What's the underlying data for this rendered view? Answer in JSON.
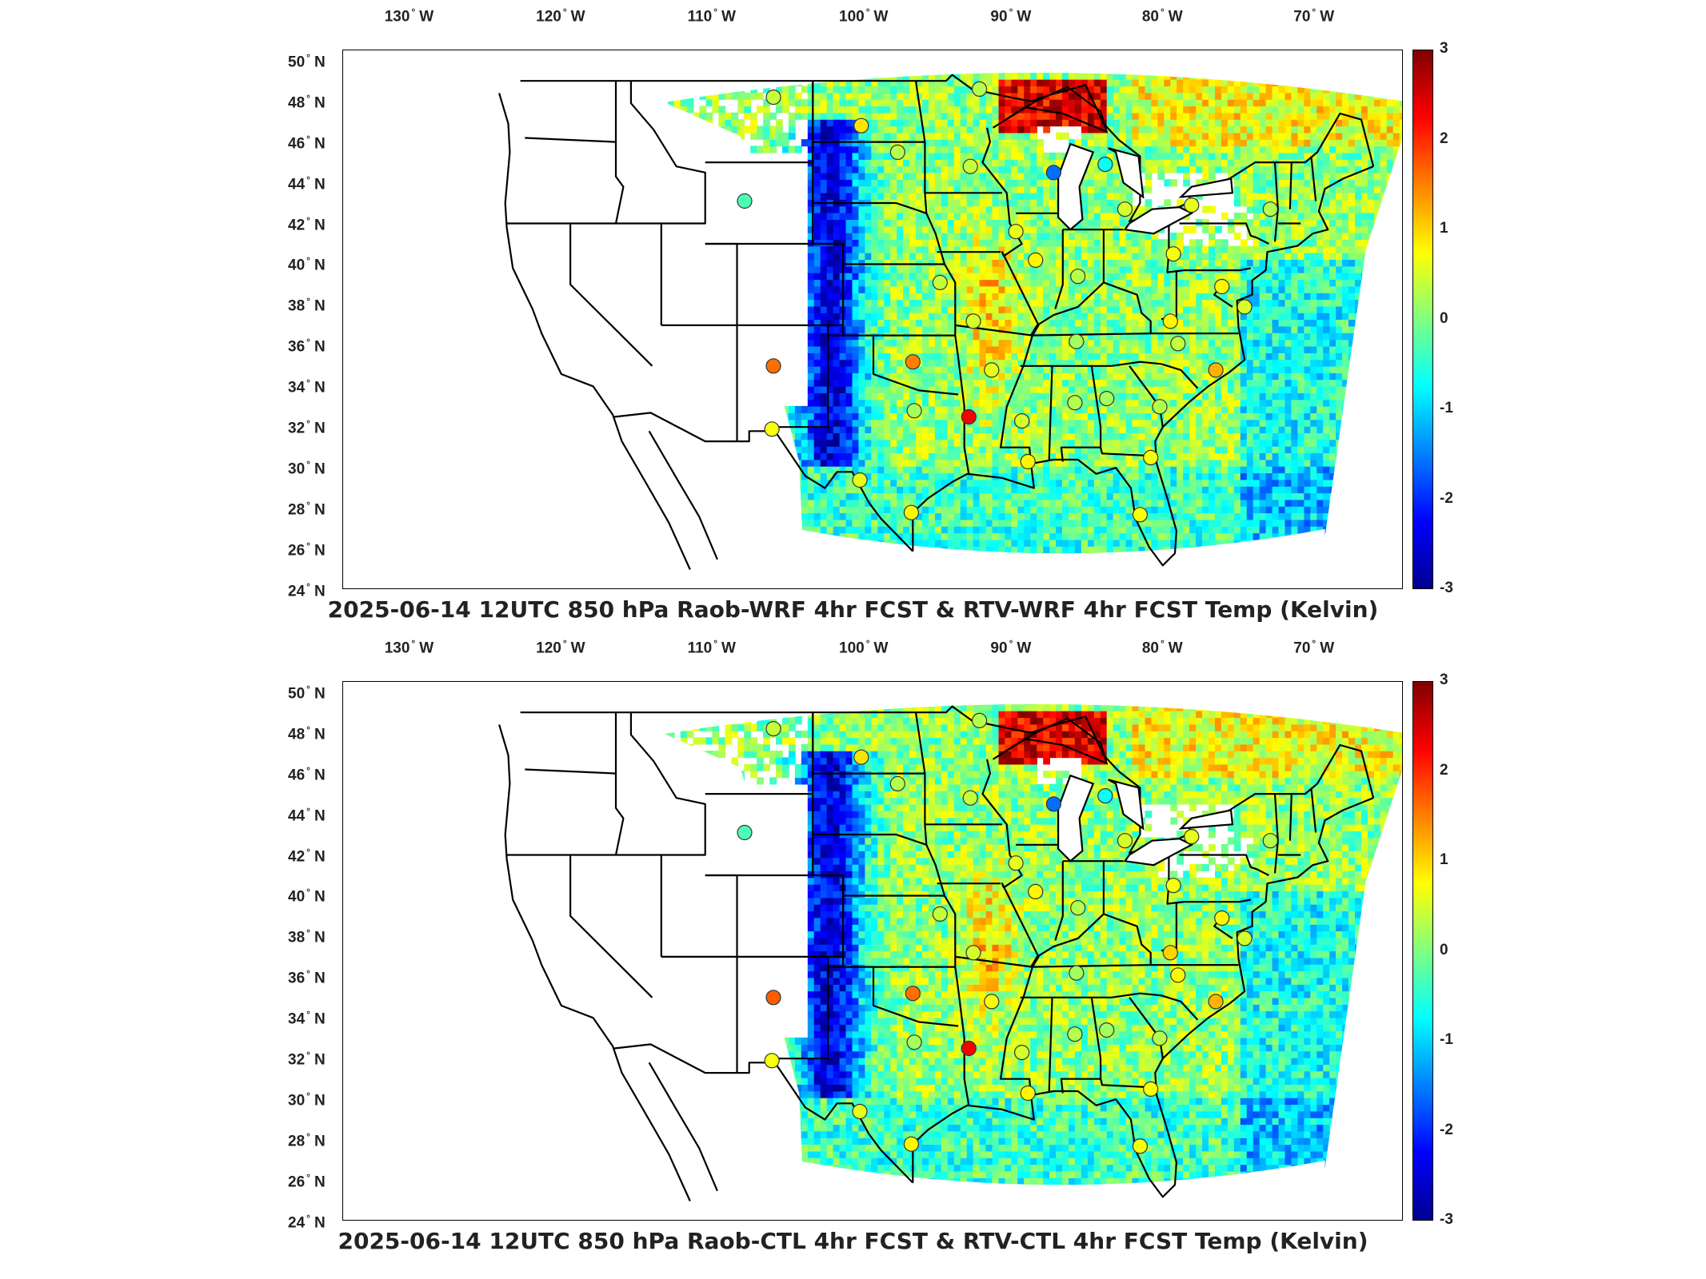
{
  "lon_ticks": [
    "130",
    "120",
    "110",
    "100",
    "90",
    "80",
    "70"
  ],
  "lon_hemisphere": "W",
  "lat_ticks": [
    "50",
    "48",
    "46",
    "44",
    "42",
    "40",
    "38",
    "36",
    "34",
    "32",
    "30",
    "28",
    "26",
    "24"
  ],
  "lat_hemisphere": "N",
  "colorbar": {
    "ticks": [
      "3",
      "2",
      "1",
      "0",
      "-1",
      "-2",
      "-3"
    ],
    "range": [
      -3,
      3
    ],
    "colormap": [
      "#00008f",
      "#0000ff",
      "#0080ff",
      "#00ffff",
      "#80ff80",
      "#ffff00",
      "#ff8000",
      "#ff0000",
      "#800000"
    ]
  },
  "panels": [
    {
      "title": "2025-06-14 12UTC 850 hPa Raob-WRF 4hr FCST & RTV-WRF 4hr FCST Temp (Kelvin)",
      "stations": [
        {
          "lon": -106.6,
          "lat": 48.2,
          "value": 0.4
        },
        {
          "lon": -100.8,
          "lat": 46.8,
          "value": 0.9
        },
        {
          "lon": -98.4,
          "lat": 45.5,
          "value": 0.3
        },
        {
          "lon": -93.6,
          "lat": 44.8,
          "value": 0.4
        },
        {
          "lon": -93.0,
          "lat": 48.6,
          "value": 0.3
        },
        {
          "lon": -88.1,
          "lat": 44.5,
          "value": -1.6
        },
        {
          "lon": -84.7,
          "lat": 44.9,
          "value": -0.7
        },
        {
          "lon": -108.5,
          "lat": 43.1,
          "value": -0.3
        },
        {
          "lon": -83.4,
          "lat": 42.7,
          "value": 0.5
        },
        {
          "lon": -79.0,
          "lat": 42.9,
          "value": 0.6
        },
        {
          "lon": -73.8,
          "lat": 42.7,
          "value": 0.3
        },
        {
          "lon": -90.6,
          "lat": 41.6,
          "value": 0.6
        },
        {
          "lon": -89.3,
          "lat": 40.2,
          "value": 0.8
        },
        {
          "lon": -80.2,
          "lat": 40.5,
          "value": 0.7
        },
        {
          "lon": -95.6,
          "lat": 39.1,
          "value": 0.4
        },
        {
          "lon": -86.5,
          "lat": 39.4,
          "value": 0.3
        },
        {
          "lon": -77.0,
          "lat": 38.9,
          "value": 0.8
        },
        {
          "lon": -75.5,
          "lat": 37.9,
          "value": 0.5
        },
        {
          "lon": -93.4,
          "lat": 37.2,
          "value": 0.5
        },
        {
          "lon": -80.4,
          "lat": 37.2,
          "value": 0.8
        },
        {
          "lon": -86.6,
          "lat": 36.2,
          "value": 0.2
        },
        {
          "lon": -79.9,
          "lat": 36.1,
          "value": 0.4
        },
        {
          "lon": -106.6,
          "lat": 35.0,
          "value": 1.6
        },
        {
          "lon": -97.4,
          "lat": 35.2,
          "value": 1.5
        },
        {
          "lon": -92.2,
          "lat": 34.8,
          "value": 0.6
        },
        {
          "lon": -77.4,
          "lat": 34.8,
          "value": 1.2
        },
        {
          "lon": -97.3,
          "lat": 32.8,
          "value": 0.2
        },
        {
          "lon": -93.7,
          "lat": 32.5,
          "value": 2.3
        },
        {
          "lon": -90.2,
          "lat": 32.3,
          "value": 0.5
        },
        {
          "lon": -86.7,
          "lat": 33.2,
          "value": 0.3
        },
        {
          "lon": -84.6,
          "lat": 33.4,
          "value": 0.2
        },
        {
          "lon": -81.1,
          "lat": 33.0,
          "value": 0.3
        },
        {
          "lon": -106.7,
          "lat": 31.9,
          "value": 0.7
        },
        {
          "lon": -89.8,
          "lat": 30.3,
          "value": 0.8
        },
        {
          "lon": -81.7,
          "lat": 30.5,
          "value": 0.7
        },
        {
          "lon": -100.9,
          "lat": 29.4,
          "value": 0.6
        },
        {
          "lon": -97.5,
          "lat": 27.8,
          "value": 0.8
        },
        {
          "lon": -82.4,
          "lat": 27.7,
          "value": 0.7
        }
      ]
    },
    {
      "title": "2025-06-14 12UTC 850 hPa Raob-CTL 4hr FCST & RTV-CTL 4hr FCST Temp (Kelvin)",
      "stations": [
        {
          "lon": -106.6,
          "lat": 48.2,
          "value": 0.4
        },
        {
          "lon": -100.8,
          "lat": 46.8,
          "value": 0.9
        },
        {
          "lon": -98.4,
          "lat": 45.5,
          "value": 0.3
        },
        {
          "lon": -93.6,
          "lat": 44.8,
          "value": 0.4
        },
        {
          "lon": -93.0,
          "lat": 48.6,
          "value": 0.3
        },
        {
          "lon": -88.1,
          "lat": 44.5,
          "value": -1.6
        },
        {
          "lon": -84.7,
          "lat": 44.9,
          "value": -0.7
        },
        {
          "lon": -108.5,
          "lat": 43.1,
          "value": -0.3
        },
        {
          "lon": -83.4,
          "lat": 42.7,
          "value": 0.5
        },
        {
          "lon": -79.0,
          "lat": 42.9,
          "value": 0.6
        },
        {
          "lon": -73.8,
          "lat": 42.7,
          "value": 0.3
        },
        {
          "lon": -90.6,
          "lat": 41.6,
          "value": 0.6
        },
        {
          "lon": -89.3,
          "lat": 40.2,
          "value": 0.8
        },
        {
          "lon": -80.2,
          "lat": 40.5,
          "value": 0.7
        },
        {
          "lon": -95.6,
          "lat": 39.1,
          "value": 0.4
        },
        {
          "lon": -86.5,
          "lat": 39.4,
          "value": 0.3
        },
        {
          "lon": -77.0,
          "lat": 38.9,
          "value": 0.8
        },
        {
          "lon": -75.5,
          "lat": 37.9,
          "value": 0.5
        },
        {
          "lon": -93.4,
          "lat": 37.2,
          "value": 0.5
        },
        {
          "lon": -80.4,
          "lat": 37.2,
          "value": 1.0
        },
        {
          "lon": -79.9,
          "lat": 36.1,
          "value": 0.8
        },
        {
          "lon": -86.6,
          "lat": 36.2,
          "value": 0.2
        },
        {
          "lon": -106.6,
          "lat": 35.0,
          "value": 1.7
        },
        {
          "lon": -97.4,
          "lat": 35.2,
          "value": 1.6
        },
        {
          "lon": -92.2,
          "lat": 34.8,
          "value": 0.7
        },
        {
          "lon": -77.4,
          "lat": 34.8,
          "value": 1.2
        },
        {
          "lon": -97.3,
          "lat": 32.8,
          "value": 0.2
        },
        {
          "lon": -93.7,
          "lat": 32.5,
          "value": 2.3
        },
        {
          "lon": -90.2,
          "lat": 32.3,
          "value": 0.5
        },
        {
          "lon": -86.7,
          "lat": 33.2,
          "value": 0.3
        },
        {
          "lon": -84.6,
          "lat": 33.4,
          "value": 0.2
        },
        {
          "lon": -81.1,
          "lat": 33.0,
          "value": 0.3
        },
        {
          "lon": -106.7,
          "lat": 31.9,
          "value": 0.7
        },
        {
          "lon": -89.8,
          "lat": 30.3,
          "value": 0.8
        },
        {
          "lon": -81.7,
          "lat": 30.5,
          "value": 0.7
        },
        {
          "lon": -100.9,
          "lat": 29.4,
          "value": 0.6
        },
        {
          "lon": -97.5,
          "lat": 27.8,
          "value": 0.8
        },
        {
          "lon": -82.4,
          "lat": 27.7,
          "value": 0.7
        }
      ]
    }
  ]
}
